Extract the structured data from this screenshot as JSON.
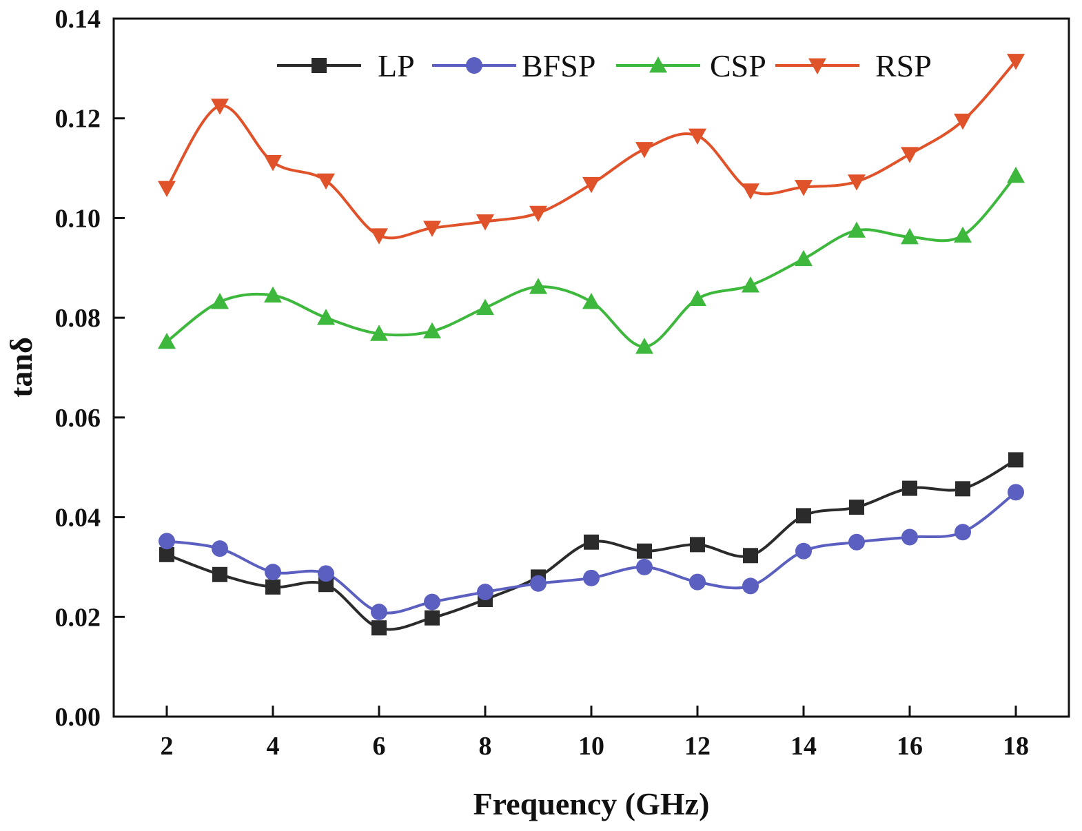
{
  "chart_data": {
    "type": "line",
    "title": "",
    "xlabel": "Frequency (GHz)",
    "ylabel": "tanδ",
    "xlim": [
      1,
      19
    ],
    "ylim": [
      0,
      0.14
    ],
    "xticks": [
      2,
      4,
      6,
      8,
      10,
      12,
      14,
      16,
      18
    ],
    "xtick_labels": [
      "2",
      "4",
      "6",
      "8",
      "10",
      "12",
      "14",
      "16",
      "18"
    ],
    "yticks": [
      0,
      0.02,
      0.04,
      0.06,
      0.08,
      0.1,
      0.12,
      0.14
    ],
    "ytick_labels": [
      "0.00",
      "0.02",
      "0.04",
      "0.06",
      "0.08",
      "0.10",
      "0.12",
      "0.14"
    ],
    "grid": false,
    "legend_position": "top",
    "x": [
      2,
      3,
      4,
      5,
      6,
      7,
      8,
      9,
      10,
      11,
      12,
      13,
      14,
      15,
      16,
      17,
      18
    ],
    "series": [
      {
        "name": "LP",
        "color": "#2b2b2b",
        "marker": "square",
        "values": [
          0.0325,
          0.0285,
          0.026,
          0.0265,
          0.0178,
          0.0198,
          0.0235,
          0.028,
          0.035,
          0.0332,
          0.0345,
          0.0323,
          0.0403,
          0.042,
          0.0458,
          0.0457,
          0.0515
        ]
      },
      {
        "name": "BFSP",
        "color": "#5b5fc0",
        "marker": "circle",
        "values": [
          0.0352,
          0.0337,
          0.029,
          0.0287,
          0.021,
          0.023,
          0.025,
          0.0267,
          0.0278,
          0.03,
          0.027,
          0.0262,
          0.0332,
          0.035,
          0.036,
          0.037,
          0.045
        ]
      },
      {
        "name": "CSP",
        "color": "#3db83d",
        "marker": "triangle-up",
        "values": [
          0.0752,
          0.0832,
          0.0845,
          0.08,
          0.0768,
          0.0773,
          0.082,
          0.0862,
          0.0832,
          0.0742,
          0.0838,
          0.0865,
          0.0918,
          0.0975,
          0.0962,
          0.0965,
          0.1085
        ]
      },
      {
        "name": "RSP",
        "color": "#e0522a",
        "marker": "triangle-down",
        "values": [
          0.106,
          0.1225,
          0.1112,
          0.1075,
          0.0965,
          0.098,
          0.0993,
          0.101,
          0.1068,
          0.1138,
          0.1165,
          0.1055,
          0.1062,
          0.1073,
          0.1128,
          0.1195,
          0.1315
        ]
      }
    ]
  }
}
